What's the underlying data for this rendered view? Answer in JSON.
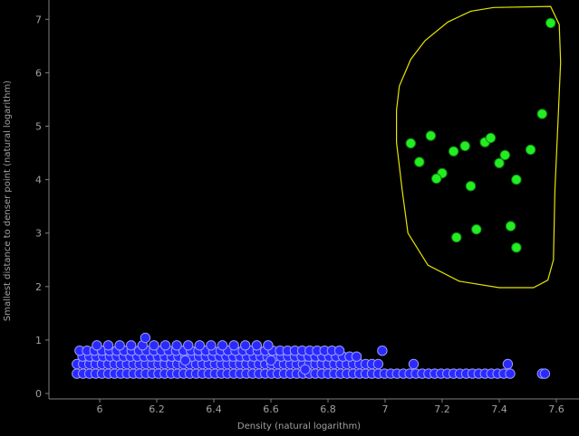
{
  "chart_data": {
    "type": "scatter",
    "title": "",
    "xlabel": "Density (natural logarithm)",
    "ylabel": "Smallest distance to denser point (natural logarithm)",
    "xlim": [
      5.9,
      7.65
    ],
    "ylim": [
      -0.05,
      7.4
    ],
    "x_ticks": [
      "6",
      "6.2",
      "6.4",
      "6.6",
      "6.8",
      "7",
      "7.2",
      "7.4",
      "7.6"
    ],
    "y_ticks": [
      "0",
      "1",
      "2",
      "3",
      "4",
      "5",
      "6",
      "7"
    ],
    "grid": false,
    "legend": "none",
    "colors": {
      "background": "#000000",
      "axis": "#808080",
      "text": "#a0a0a0",
      "outlier_fill": "#22ee22",
      "outlier_stroke": "#118811",
      "cluster_fill": "#2a2aff",
      "cluster_stroke": "#9a9aff",
      "selection_outline": "#e6e600"
    },
    "series": [
      {
        "role": "selected-outliers",
        "points": [
          [
            7.58,
            6.93
          ],
          [
            7.55,
            5.23
          ],
          [
            7.09,
            4.68
          ],
          [
            7.16,
            4.82
          ],
          [
            7.12,
            4.33
          ],
          [
            7.2,
            4.12
          ],
          [
            7.18,
            4.02
          ],
          [
            7.24,
            4.53
          ],
          [
            7.28,
            4.63
          ],
          [
            7.3,
            3.88
          ],
          [
            7.35,
            4.7
          ],
          [
            7.37,
            4.78
          ],
          [
            7.4,
            4.31
          ],
          [
            7.42,
            4.46
          ],
          [
            7.46,
            4.0
          ],
          [
            7.51,
            4.56
          ],
          [
            7.25,
            2.92
          ],
          [
            7.32,
            3.07
          ],
          [
            7.44,
            3.13
          ],
          [
            7.46,
            2.73
          ]
        ]
      },
      {
        "role": "dense-points",
        "rows": [
          {
            "y": 0.37,
            "x_start": 5.92,
            "x_end": 7.45,
            "step": 0.022
          },
          {
            "y": 0.55,
            "x_start": 5.92,
            "x_end": 6.98,
            "step": 0.022
          },
          {
            "y": 0.69,
            "x_start": 5.94,
            "x_end": 6.92,
            "step": 0.024
          },
          {
            "y": 0.8,
            "x_start": 5.93,
            "x_end": 6.84,
            "step": 0.026
          },
          {
            "y": 0.9,
            "x_start": 5.99,
            "x_end": 6.62,
            "step": 0.04
          }
        ],
        "extra_points": [
          [
            6.16,
            1.04
          ],
          [
            6.99,
            0.8
          ],
          [
            7.1,
            0.55
          ],
          [
            7.43,
            0.55
          ],
          [
            7.55,
            0.37
          ],
          [
            7.56,
            0.37
          ],
          [
            6.6,
            0.62
          ],
          [
            6.72,
            0.45
          ],
          [
            6.3,
            0.62
          ]
        ]
      }
    ],
    "selection_outline": [
      [
        7.38,
        7.22
      ],
      [
        7.58,
        7.24
      ],
      [
        7.61,
        6.9
      ],
      [
        7.615,
        6.2
      ],
      [
        7.605,
        5.0
      ],
      [
        7.595,
        3.8
      ],
      [
        7.59,
        2.5
      ],
      [
        7.57,
        2.12
      ],
      [
        7.52,
        1.98
      ],
      [
        7.4,
        1.98
      ],
      [
        7.26,
        2.1
      ],
      [
        7.15,
        2.4
      ],
      [
        7.08,
        3.0
      ],
      [
        7.06,
        3.8
      ],
      [
        7.04,
        4.7
      ],
      [
        7.04,
        5.3
      ],
      [
        7.05,
        5.75
      ],
      [
        7.09,
        6.25
      ],
      [
        7.14,
        6.6
      ],
      [
        7.22,
        6.95
      ],
      [
        7.3,
        7.15
      ],
      [
        7.38,
        7.22
      ]
    ]
  }
}
